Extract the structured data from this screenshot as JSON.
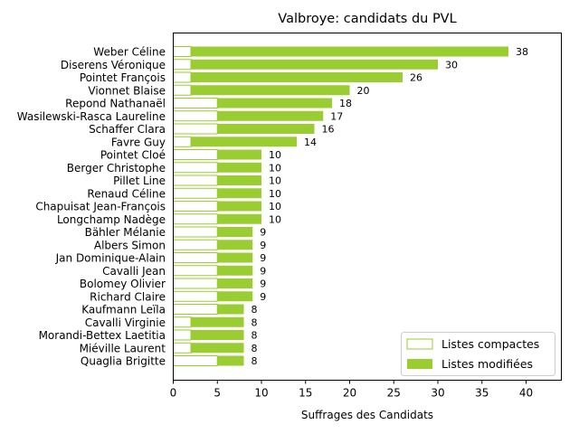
{
  "chart_data": {
    "type": "bar",
    "orientation": "horizontal",
    "stacked": true,
    "title": "Valbroye: candidats du PVL",
    "xlabel": "Suffrages des Candidats",
    "ylabel": "",
    "xlim": [
      0,
      44
    ],
    "xticks": [
      0,
      5,
      10,
      15,
      20,
      25,
      30,
      35,
      40
    ],
    "grid": false,
    "legend_position": "lower-right",
    "colors": {
      "compactes": "#ffffff",
      "compactes_edge": "#9acd32",
      "modifiees": "#9acd32"
    },
    "categories": [
      "Weber Céline",
      "Diserens Véronique",
      "Pointet François",
      "Vionnet Blaise",
      "Repond Nathanaël",
      "Wasilewski-Rasca Laureline",
      "Schaffer Clara",
      "Favre Guy",
      "Pointet Cloé",
      "Berger Christophe",
      "Pillet Line",
      "Renaud Céline",
      "Chapuisat Jean-François",
      "Longchamp Nadège",
      "Bähler Mélanie",
      "Albers Simon",
      "Jan Dominique-Alain",
      "Cavalli Jean",
      "Bolomey Olivier",
      "Richard Claire",
      "Kaufmann Leïla",
      "Cavalli Virginie",
      "Morandi-Bettex Laetitia",
      "Miéville Laurent",
      "Quaglia Brigitte"
    ],
    "series": [
      {
        "name": "Listes compactes",
        "values": [
          2,
          2,
          2,
          2,
          5,
          5,
          5,
          2,
          5,
          5,
          5,
          5,
          5,
          5,
          5,
          5,
          5,
          5,
          5,
          5,
          5,
          2,
          2,
          2,
          5
        ]
      },
      {
        "name": "Listes modifiées",
        "values": [
          36,
          28,
          24,
          18,
          13,
          12,
          11,
          12,
          5,
          5,
          5,
          5,
          5,
          5,
          4,
          4,
          4,
          4,
          4,
          4,
          3,
          6,
          6,
          6,
          3
        ]
      }
    ],
    "totals": [
      38,
      30,
      26,
      20,
      18,
      17,
      16,
      14,
      10,
      10,
      10,
      10,
      10,
      10,
      9,
      9,
      9,
      9,
      9,
      9,
      8,
      8,
      8,
      8,
      8
    ]
  }
}
